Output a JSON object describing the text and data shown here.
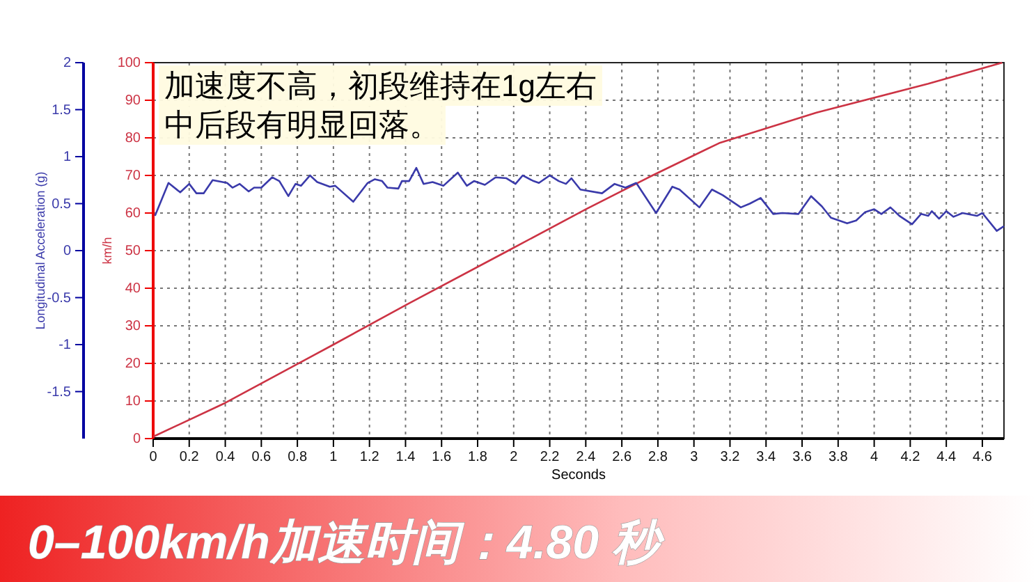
{
  "chart_data": {
    "type": "line",
    "title": "0–100km/h加速时间：4.80 秒",
    "xlabel": "Seconds",
    "ylabel": "km/h",
    "y2label": "Longitudinal Acceleration (g)",
    "annotations": [
      "加速度不高，初段维持在1g左右",
      "中后段有明显回落。"
    ],
    "xlim": [
      0,
      4.72
    ],
    "xticks": [
      0,
      0.2,
      0.4,
      0.6,
      0.8,
      1,
      1.2,
      1.4,
      1.6,
      1.8,
      2,
      2.2,
      2.4,
      2.6,
      2.8,
      3,
      3.2,
      3.4,
      3.6,
      3.8,
      4,
      4.2,
      4.4,
      4.6
    ],
    "ylim": [
      0,
      100
    ],
    "yticks": [
      0,
      10,
      20,
      30,
      40,
      50,
      60,
      70,
      80,
      90,
      100
    ],
    "y2lim": [
      -2,
      2
    ],
    "y2ticks": [
      -1.5,
      -1,
      -0.5,
      0,
      0.5,
      1,
      1.5,
      2
    ],
    "grid": true,
    "series": [
      {
        "color": "#cc3344",
        "x": [
          0,
          0.4,
          1.0,
          1.42,
          1.97,
          2.4,
          2.77,
          3.14,
          3.68,
          4.3,
          4.71
        ],
        "values": [
          0.5,
          9.5,
          25,
          36,
          50,
          61,
          70,
          78.6,
          86.7,
          94.4,
          100
        ]
      },
      {
        "color": "#3a3aaa",
        "axis": "y2",
        "x": [
          0.01,
          0.085,
          0.15,
          0.2,
          0.24,
          0.28,
          0.33,
          0.41,
          0.44,
          0.48,
          0.53,
          0.56,
          0.6,
          0.66,
          0.7,
          0.75,
          0.79,
          0.82,
          0.87,
          0.91,
          0.98,
          1.01,
          1.11,
          1.19,
          1.23,
          1.27,
          1.3,
          1.36,
          1.38,
          1.42,
          1.46,
          1.5,
          1.55,
          1.61,
          1.69,
          1.74,
          1.78,
          1.84,
          1.9,
          1.96,
          2.01,
          2.05,
          2.11,
          2.14,
          2.2,
          2.25,
          2.29,
          2.32,
          2.37,
          2.49,
          2.56,
          2.62,
          2.68,
          2.79,
          2.88,
          2.92,
          3.03,
          3.1,
          3.16,
          3.26,
          3.31,
          3.37,
          3.44,
          3.49,
          3.58,
          3.65,
          3.71,
          3.76,
          3.85,
          3.9,
          3.95,
          4.0,
          4.04,
          4.09,
          4.14,
          4.21,
          4.26,
          4.3,
          4.32,
          4.36,
          4.4,
          4.44,
          4.49,
          4.57,
          4.6,
          4.68,
          4.72
        ],
        "values": [
          0.37,
          0.72,
          0.62,
          0.71,
          0.61,
          0.61,
          0.75,
          0.72,
          0.67,
          0.71,
          0.63,
          0.67,
          0.67,
          0.78,
          0.74,
          0.58,
          0.71,
          0.69,
          0.8,
          0.73,
          0.68,
          0.69,
          0.52,
          0.72,
          0.76,
          0.74,
          0.67,
          0.66,
          0.74,
          0.74,
          0.88,
          0.71,
          0.73,
          0.69,
          0.83,
          0.69,
          0.74,
          0.7,
          0.78,
          0.77,
          0.71,
          0.8,
          0.74,
          0.72,
          0.8,
          0.74,
          0.71,
          0.77,
          0.65,
          0.61,
          0.71,
          0.67,
          0.72,
          0.4,
          0.68,
          0.65,
          0.46,
          0.65,
          0.59,
          0.46,
          0.5,
          0.56,
          0.39,
          0.4,
          0.39,
          0.58,
          0.47,
          0.35,
          0.29,
          0.32,
          0.41,
          0.44,
          0.39,
          0.46,
          0.37,
          0.28,
          0.39,
          0.37,
          0.42,
          0.34,
          0.42,
          0.36,
          0.4,
          0.37,
          0.4,
          0.21,
          0.26
        ]
      }
    ]
  }
}
